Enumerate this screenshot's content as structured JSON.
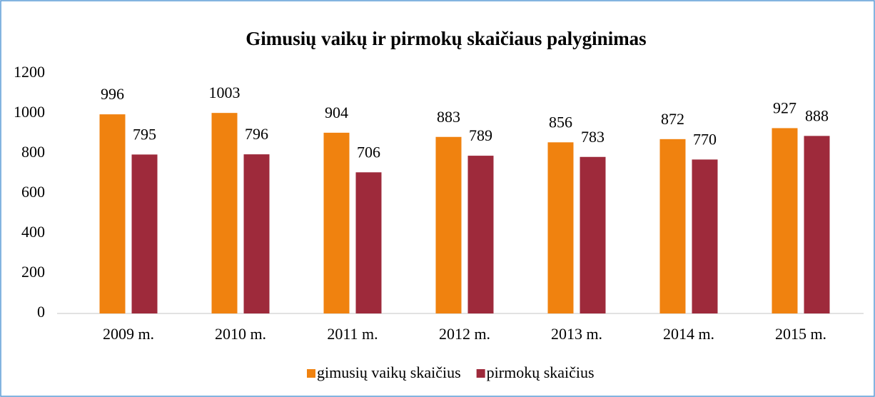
{
  "chart_data": {
    "type": "bar",
    "title": "Gimusių vaikų ir pirmokų skaičiaus palyginimas",
    "categories": [
      "2009 m.",
      "2010 m.",
      "2011 m.",
      "2012 m.",
      "2013 m.",
      "2014 m.",
      "2015 m."
    ],
    "series": [
      {
        "name": "gimusių vaikų skaičius",
        "color": "#f0820f",
        "values": [
          996,
          1003,
          904,
          883,
          856,
          872,
          927
        ]
      },
      {
        "name": "pirmokų skaičius",
        "color": "#9e2a3b",
        "values": [
          795,
          796,
          706,
          789,
          783,
          770,
          888
        ]
      }
    ],
    "ylim": [
      0,
      1200
    ],
    "yticks": [
      0,
      200,
      400,
      600,
      800,
      1000,
      1200
    ],
    "grid": false,
    "legend": "bottom"
  }
}
